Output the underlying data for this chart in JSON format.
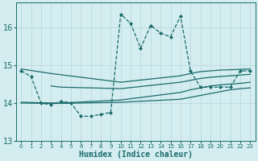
{
  "xlabel": "Humidex (Indice chaleur)",
  "xlim": [
    -0.5,
    23.5
  ],
  "ylim": [
    13.0,
    16.65
  ],
  "yticks": [
    13,
    14,
    15,
    16
  ],
  "xticks": [
    0,
    1,
    2,
    3,
    4,
    5,
    6,
    7,
    8,
    9,
    10,
    11,
    12,
    13,
    14,
    15,
    16,
    17,
    18,
    19,
    20,
    21,
    22,
    23
  ],
  "background_color": "#d4edf0",
  "grid_color": "#b8d5da",
  "line_color": "#1a6b6b",
  "lines": [
    {
      "x": [
        0,
        1,
        2,
        3,
        4,
        5,
        6,
        7,
        8,
        9,
        10,
        11,
        12,
        13,
        14,
        15,
        16,
        17,
        18,
        19,
        20,
        21,
        22,
        23
      ],
      "y": [
        14.85,
        14.7,
        14.0,
        13.95,
        14.05,
        14.0,
        13.65,
        13.65,
        13.7,
        13.75,
        16.35,
        16.1,
        15.45,
        16.05,
        15.85,
        15.75,
        16.3,
        14.85,
        14.42,
        14.42,
        14.42,
        14.42,
        14.85,
        14.85
      ],
      "style": "--",
      "marker": "D",
      "markersize": 2.0,
      "lw": 0.9
    },
    {
      "x": [
        0,
        3,
        10,
        16,
        17,
        18,
        19,
        20,
        21,
        22,
        23
      ],
      "y": [
        14.9,
        14.78,
        14.55,
        14.72,
        14.78,
        14.83,
        14.85,
        14.87,
        14.88,
        14.89,
        14.9
      ],
      "style": "-",
      "marker": null,
      "lw": 0.9
    },
    {
      "x": [
        3,
        4,
        10,
        16,
        17,
        18,
        19,
        20,
        21,
        22,
        23
      ],
      "y": [
        14.45,
        14.42,
        14.38,
        14.55,
        14.6,
        14.65,
        14.68,
        14.7,
        14.72,
        14.74,
        14.76
      ],
      "style": "-",
      "marker": null,
      "lw": 0.9
    },
    {
      "x": [
        0,
        3,
        4,
        10,
        16,
        17,
        18,
        19,
        20,
        21,
        22,
        23
      ],
      "y": [
        14.02,
        14.0,
        14.0,
        14.08,
        14.28,
        14.35,
        14.4,
        14.45,
        14.48,
        14.5,
        14.52,
        14.55
      ],
      "style": "-",
      "marker": null,
      "lw": 0.9
    },
    {
      "x": [
        0,
        3,
        4,
        10,
        16,
        17,
        18,
        19,
        20,
        21,
        22,
        23
      ],
      "y": [
        14.0,
        13.99,
        13.99,
        14.02,
        14.1,
        14.15,
        14.2,
        14.25,
        14.3,
        14.35,
        14.38,
        14.4
      ],
      "style": "-",
      "marker": null,
      "lw": 0.9
    }
  ]
}
